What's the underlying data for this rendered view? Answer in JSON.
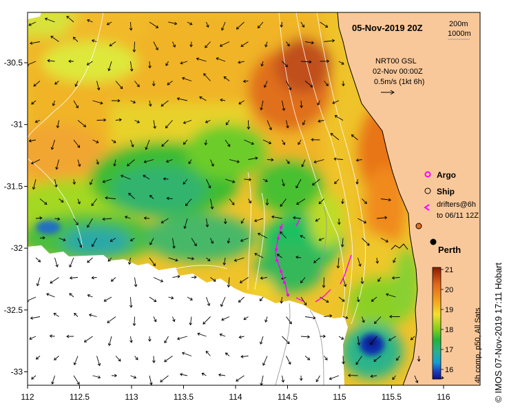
{
  "map": {
    "date_title": "05-Nov-2019 20Z",
    "contour_labels": [
      "200m",
      "1000m"
    ],
    "current_source": "NRT00 GSL",
    "current_time": "02-Nov 00:00Z",
    "current_scale": "0.5m/s (1kt 6h)",
    "city": "Perth",
    "credit": "© IMOS 07-Nov-2019 17:11 Hobart"
  },
  "legend": {
    "argo": "Argo",
    "ship": "Ship",
    "drifters_line1": "drifters@6h",
    "drifters_line2": "to 06/11 12Z"
  },
  "colorbar": {
    "label": "4h comp, p50, All Sats",
    "ticks": [
      "21",
      "20",
      "19",
      "18",
      "17",
      "16"
    ]
  },
  "axes": {
    "x_ticks": [
      "112",
      "112.5",
      "113",
      "113.5",
      "114",
      "114.5",
      "115",
      "115.5",
      "116"
    ],
    "y_ticks": [
      "-30.5",
      "-31",
      "-31.5",
      "-32",
      "-32.5",
      "-33"
    ]
  },
  "colors": {
    "land": "#f9c89a",
    "argo": "#ff00ff",
    "ship_marker": "#e07020",
    "city_marker": "#000000"
  }
}
